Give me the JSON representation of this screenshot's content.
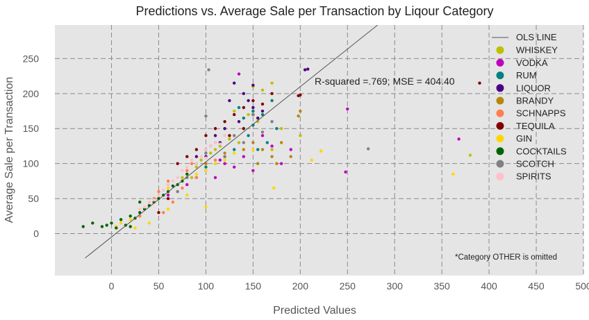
{
  "chart_data": {
    "type": "scatter",
    "title": "Predictions vs. Average Sale per Transaction by Liqour Category",
    "xlabel": "Predicted Values",
    "ylabel": "Average Sale per Transaction",
    "xlim": [
      -60,
      500
    ],
    "ylim": [
      -60,
      298
    ],
    "xticks": [
      0,
      50,
      100,
      150,
      200,
      250,
      300,
      350,
      400,
      450,
      500
    ],
    "yticks": [
      0,
      50,
      100,
      150,
      200,
      250
    ],
    "grid": true,
    "legend_position": "top-right",
    "annotation": "R-squared =.769; MSE = 404.40",
    "note": "*Category OTHER is omitted",
    "ols_line": {
      "name": "OLS LINE",
      "color": "#555555",
      "points": [
        [
          -28,
          -35
        ],
        [
          282,
          298
        ]
      ]
    },
    "series": [
      {
        "name": "WHISKEY",
        "color": "#bfbf00",
        "points": [
          [
            150,
            210
          ],
          [
            130,
            175
          ],
          [
            160,
            205
          ],
          [
            95,
            105
          ],
          [
            120,
            140
          ],
          [
            140,
            150
          ],
          [
            180,
            150
          ],
          [
            200,
            140
          ],
          [
            110,
            120
          ],
          [
            105,
            115
          ],
          [
            85,
            80
          ],
          [
            60,
            60
          ],
          [
            155,
            160
          ],
          [
            135,
            130
          ],
          [
            125,
            135
          ],
          [
            145,
            170
          ],
          [
            170,
            120
          ],
          [
            380,
            112
          ],
          [
            100,
            100
          ],
          [
            90,
            95
          ],
          [
            170,
            215
          ],
          [
            75,
            80
          ],
          [
            115,
            125
          ]
        ]
      },
      {
        "name": "VODKA",
        "color": "#bf00bf",
        "points": [
          [
            250,
            178
          ],
          [
            368,
            135
          ],
          [
            248,
            88
          ],
          [
            135,
            228
          ],
          [
            170,
            125
          ],
          [
            150,
            90
          ],
          [
            120,
            100
          ],
          [
            100,
            120
          ],
          [
            140,
            110
          ],
          [
            160,
            140
          ],
          [
            110,
            80
          ],
          [
            130,
            95
          ],
          [
            80,
            70
          ],
          [
            60,
            55
          ],
          [
            190,
            120
          ],
          [
            180,
            100
          ],
          [
            90,
            80
          ],
          [
            115,
            105
          ]
        ]
      },
      {
        "name": "RUM",
        "color": "#008080",
        "points": [
          [
            150,
            155
          ],
          [
            160,
            170
          ],
          [
            145,
            140
          ],
          [
            130,
            120
          ],
          [
            175,
            150
          ],
          [
            165,
            130
          ],
          [
            140,
            165
          ],
          [
            155,
            120
          ],
          [
            120,
            110
          ],
          [
            100,
            95
          ],
          [
            170,
            190
          ],
          [
            135,
            180
          ],
          [
            150,
            175
          ],
          [
            110,
            100
          ]
        ]
      },
      {
        "name": "LIQUOR",
        "color": "#4b0082",
        "points": [
          [
            205,
            234
          ],
          [
            208,
            235
          ],
          [
            150,
            212
          ],
          [
            140,
            200
          ],
          [
            130,
            215
          ],
          [
            125,
            190
          ],
          [
            160,
            175
          ],
          [
            110,
            140
          ],
          [
            120,
            150
          ],
          [
            150,
            180
          ],
          [
            135,
            160
          ],
          [
            145,
            190
          ],
          [
            115,
            130
          ],
          [
            100,
            110
          ],
          [
            155,
            165
          ],
          [
            90,
            110
          ]
        ]
      },
      {
        "name": "BRANDY",
        "color": "#b8860b",
        "points": [
          [
            200,
            175
          ],
          [
            198,
            168
          ],
          [
            180,
            130
          ],
          [
            190,
            110
          ],
          [
            160,
            120
          ],
          [
            170,
            110
          ],
          [
            150,
            130
          ],
          [
            140,
            120
          ],
          [
            120,
            115
          ],
          [
            100,
            100
          ],
          [
            155,
            100
          ],
          [
            175,
            100
          ]
        ]
      },
      {
        "name": "SCHNAPPS",
        "color": "#ff7f50",
        "points": [
          [
            50,
            60
          ],
          [
            40,
            40
          ],
          [
            70,
            60
          ],
          [
            80,
            90
          ],
          [
            30,
            25
          ],
          [
            90,
            80
          ],
          [
            60,
            75
          ],
          [
            110,
            105
          ],
          [
            100,
            90
          ],
          [
            75,
            65
          ],
          [
            65,
            45
          ],
          [
            55,
            30
          ],
          [
            85,
            100
          ],
          [
            45,
            50
          ]
        ]
      },
      {
        "name": "TEQUILA",
        "color": "#800000",
        "points": [
          [
            390,
            215
          ],
          [
            198,
            197
          ],
          [
            200,
            198
          ],
          [
            150,
            190
          ],
          [
            160,
            185
          ],
          [
            140,
            180
          ],
          [
            120,
            160
          ],
          [
            130,
            170
          ],
          [
            110,
            150
          ],
          [
            100,
            140
          ],
          [
            90,
            120
          ],
          [
            80,
            110
          ],
          [
            70,
            100
          ],
          [
            60,
            50
          ],
          [
            50,
            30
          ],
          [
            150,
            170
          ],
          [
            170,
            200
          ],
          [
            140,
            150
          ],
          [
            125,
            140
          ]
        ]
      },
      {
        "name": "GIN",
        "color": "#ffd700",
        "points": [
          [
            362,
            85
          ],
          [
            222,
            118
          ],
          [
            212,
            105
          ],
          [
            172,
            65
          ],
          [
            120,
            105
          ],
          [
            100,
            90
          ],
          [
            80,
            85
          ],
          [
            60,
            65
          ],
          [
            40,
            40
          ],
          [
            20,
            20
          ],
          [
            10,
            15
          ],
          [
            30,
            30
          ],
          [
            50,
            50
          ],
          [
            70,
            70
          ],
          [
            90,
            85
          ],
          [
            110,
            100
          ],
          [
            130,
            115
          ],
          [
            150,
            120
          ],
          [
            100,
            38
          ],
          [
            40,
            15
          ],
          [
            25,
            8
          ],
          [
            5,
            10
          ],
          [
            60,
            35
          ],
          [
            80,
            55
          ]
        ]
      },
      {
        "name": "COCKTAILS",
        "color": "#006400",
        "points": [
          [
            -30,
            10
          ],
          [
            -20,
            15
          ],
          [
            -10,
            10
          ],
          [
            0,
            15
          ],
          [
            10,
            20
          ],
          [
            20,
            25
          ],
          [
            30,
            30
          ],
          [
            40,
            40
          ],
          [
            50,
            50
          ],
          [
            60,
            60
          ],
          [
            70,
            70
          ],
          [
            80,
            85
          ],
          [
            90,
            100
          ],
          [
            20,
            10
          ],
          [
            35,
            35
          ],
          [
            45,
            45
          ],
          [
            55,
            55
          ],
          [
            65,
            68
          ],
          [
            25,
            22
          ],
          [
            15,
            12
          ],
          [
            5,
            8
          ],
          [
            -5,
            12
          ],
          [
            30,
            45
          ],
          [
            75,
            75
          ]
        ]
      },
      {
        "name": "SCOTCH",
        "color": "#808080",
        "points": [
          [
            272,
            121
          ],
          [
            103,
            234
          ],
          [
            100,
            168
          ],
          [
            80,
            80
          ],
          [
            90,
            100
          ],
          [
            110,
            130
          ],
          [
            120,
            110
          ],
          [
            130,
            140
          ],
          [
            150,
            170
          ],
          [
            160,
            145
          ],
          [
            140,
            130
          ],
          [
            100,
            115
          ],
          [
            70,
            60
          ],
          [
            60,
            70
          ],
          [
            170,
            160
          ],
          [
            105,
            125
          ]
        ]
      },
      {
        "name": "SPIRITS",
        "color": "#ffc0cb",
        "points": [
          [
            100,
            120
          ],
          [
            110,
            130
          ],
          [
            90,
            100
          ],
          [
            80,
            95
          ],
          [
            70,
            80
          ],
          [
            60,
            70
          ],
          [
            50,
            55
          ],
          [
            40,
            45
          ],
          [
            30,
            35
          ],
          [
            95,
            110
          ],
          [
            85,
            105
          ],
          [
            75,
            90
          ],
          [
            65,
            75
          ],
          [
            55,
            62
          ],
          [
            105,
            125
          ],
          [
            115,
            128
          ],
          [
            45,
            48
          ],
          [
            35,
            38
          ],
          [
            120,
            140
          ],
          [
            100,
            108
          ]
        ]
      }
    ]
  }
}
